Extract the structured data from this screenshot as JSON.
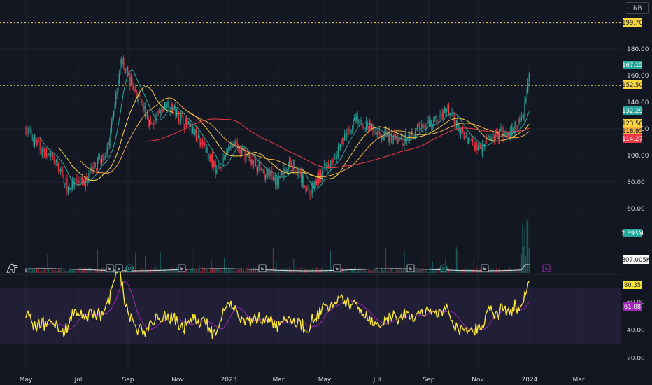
{
  "currency": "INR",
  "chart_data": {
    "type": "candlestick",
    "price_axis": {
      "ticks": [
        180,
        160,
        140,
        120,
        100,
        80,
        60
      ],
      "ylim": [
        55,
        203
      ]
    },
    "x_ticks": [
      "May",
      "Jul",
      "Sep",
      "Nov",
      "2023",
      "Mar",
      "May",
      "Jul",
      "Sep",
      "Nov",
      "2024",
      "Mar"
    ],
    "price_labels": [
      {
        "name": "horizontal-level",
        "value": "199.70",
        "color": "#f9d53f"
      },
      {
        "name": "last-price",
        "value": "167.15",
        "color": "#26a69a"
      },
      {
        "name": "horizontal-level",
        "value": "152.50",
        "color": "#f9d53f"
      },
      {
        "name": "ma-fast",
        "value": "132.29",
        "color": "#26a69a"
      },
      {
        "name": "ma-medium",
        "value": "123.50",
        "color": "#f9d53f"
      },
      {
        "name": "ma-slow",
        "value": "118.95",
        "color": "#f5b041"
      },
      {
        "name": "ma-long",
        "value": "114.27",
        "color": "#f23645"
      }
    ],
    "volume_labels": [
      {
        "name": "volume",
        "value": "2.393M",
        "color": "#26a69a"
      },
      {
        "name": "volume-ma",
        "value": "807.005K",
        "color": "#ffffff"
      }
    ],
    "rsi": {
      "ticks": [
        60,
        40,
        20
      ],
      "ylim": [
        12,
        88
      ],
      "band": [
        30,
        70
      ],
      "mid": 50,
      "labels": [
        {
          "name": "rsi",
          "value": "80.35",
          "color": "#f9e72f"
        },
        {
          "name": "rsi-ma",
          "value": "61.08",
          "color": "#9c27b0"
        }
      ]
    },
    "event_markers": [
      "E",
      "E",
      "D",
      "E",
      "E",
      "E",
      "E",
      "D",
      "E",
      "E"
    ],
    "future_marker": "E",
    "price_series": [
      {
        "date": "2022-05-02",
        "close": 120
      },
      {
        "date": "2022-05-20",
        "close": 105
      },
      {
        "date": "2022-06-10",
        "close": 92
      },
      {
        "date": "2022-06-22",
        "close": 76
      },
      {
        "date": "2022-07-12",
        "close": 80
      },
      {
        "date": "2022-08-01",
        "close": 98
      },
      {
        "date": "2022-08-10",
        "close": 106
      },
      {
        "date": "2022-08-25",
        "close": 172
      },
      {
        "date": "2022-09-10",
        "close": 150
      },
      {
        "date": "2022-10-01",
        "close": 122
      },
      {
        "date": "2022-10-20",
        "close": 140
      },
      {
        "date": "2022-11-10",
        "close": 125
      },
      {
        "date": "2022-12-01",
        "close": 110
      },
      {
        "date": "2022-12-20",
        "close": 88
      },
      {
        "date": "2023-01-05",
        "close": 110
      },
      {
        "date": "2023-02-01",
        "close": 95
      },
      {
        "date": "2023-03-01",
        "close": 80
      },
      {
        "date": "2023-03-20",
        "close": 96
      },
      {
        "date": "2023-04-10",
        "close": 72
      },
      {
        "date": "2023-05-01",
        "close": 92
      },
      {
        "date": "2023-05-20",
        "close": 110
      },
      {
        "date": "2023-06-05",
        "close": 126
      },
      {
        "date": "2023-07-01",
        "close": 118
      },
      {
        "date": "2023-08-01",
        "close": 110
      },
      {
        "date": "2023-08-20",
        "close": 122
      },
      {
        "date": "2023-09-10",
        "close": 126
      },
      {
        "date": "2023-09-25",
        "close": 134
      },
      {
        "date": "2023-10-10",
        "close": 118
      },
      {
        "date": "2023-11-01",
        "close": 106
      },
      {
        "date": "2023-11-20",
        "close": 116
      },
      {
        "date": "2023-12-10",
        "close": 118
      },
      {
        "date": "2023-12-25",
        "close": 130
      },
      {
        "date": "2024-01-02",
        "close": 167
      }
    ]
  }
}
